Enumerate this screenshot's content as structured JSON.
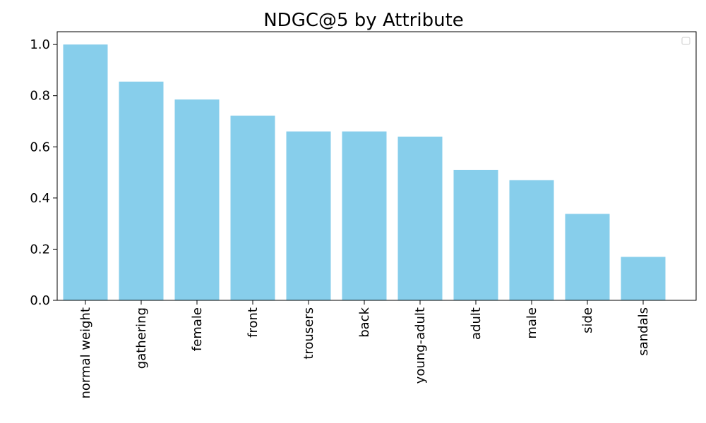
{
  "chart_data": {
    "type": "bar",
    "title": "NDGC@5 by Attribute",
    "xlabel": "",
    "ylabel": "",
    "categories": [
      "normal weight",
      "gathering",
      "female",
      "front",
      "trousers",
      "back",
      "young-adult",
      "adult",
      "male",
      "side",
      "sandals"
    ],
    "values": [
      1.0,
      0.855,
      0.785,
      0.722,
      0.66,
      0.66,
      0.64,
      0.51,
      0.47,
      0.338,
      0.17
    ],
    "ylim": [
      0,
      1.05
    ],
    "yticks": [
      0.0,
      0.2,
      0.4,
      0.6,
      0.8,
      1.0
    ],
    "ytick_labels": [
      "0.0",
      "0.2",
      "0.4",
      "0.6",
      "0.8",
      "1.0"
    ],
    "x_tick_rotation": 90,
    "grid": false,
    "legend": {
      "placement": "top-right",
      "entries": []
    },
    "colors": {
      "bar": "#87CEEB",
      "axis": "#000000",
      "background": "#ffffff"
    }
  }
}
